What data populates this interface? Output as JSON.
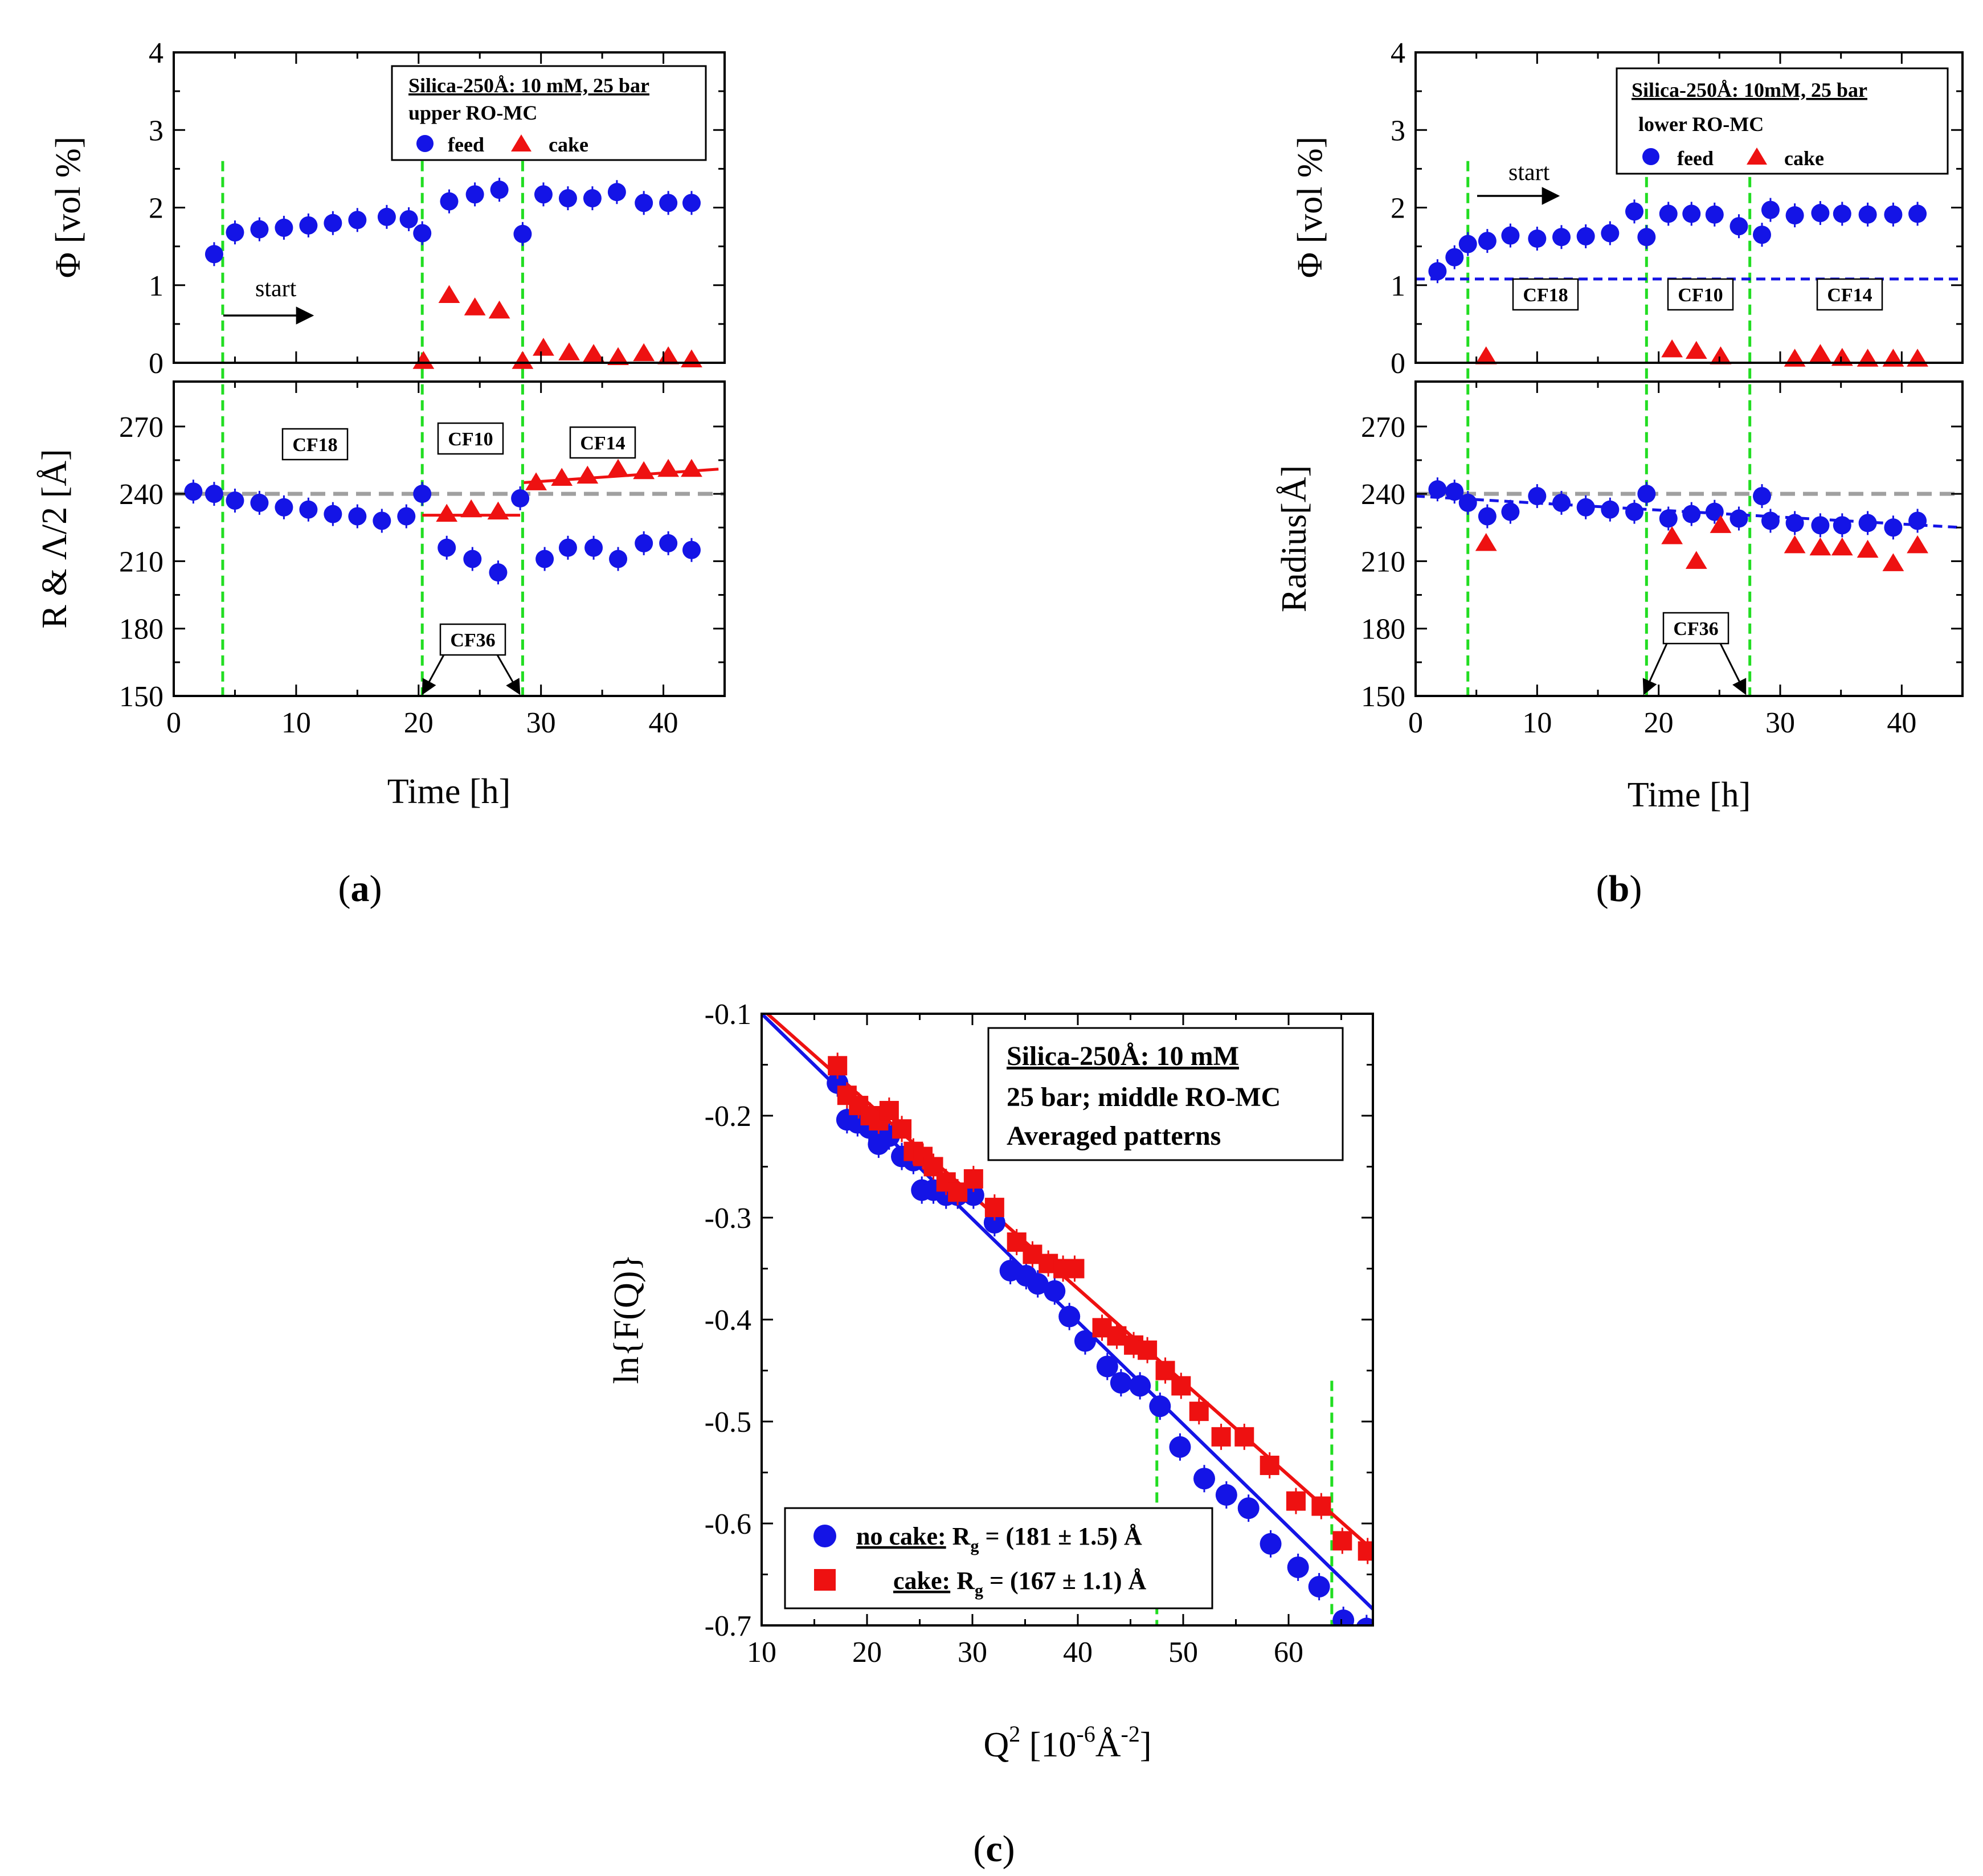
{
  "colors": {
    "feed": "#1414e6",
    "cake": "#ee1111",
    "green": "#22dd22",
    "grey": "#a0a0a0",
    "fit_blue": "#1414e6",
    "fit_red": "#ee1111"
  },
  "panels": {
    "a": {
      "label_open": "(",
      "label_letter": "a",
      "label_close": ")",
      "top": {
        "ylabel": "Φ [vol %]",
        "xlim": [
          0,
          45
        ],
        "ylim": [
          0,
          4
        ],
        "yticks": [
          "0",
          "1",
          "2",
          "3",
          "4"
        ],
        "yticks_values": [
          0,
          1,
          2,
          3,
          4
        ],
        "box_title": "Silica-250Å: 10 mM, 25 bar",
        "box_sub": "upper RO-MC",
        "legend_feed": "feed",
        "legend_cake": "cake",
        "start_label": "start",
        "feed": [
          [
            3.3,
            1.4
          ],
          [
            5,
            1.68
          ],
          [
            7,
            1.72
          ],
          [
            9,
            1.74
          ],
          [
            11,
            1.77
          ],
          [
            13,
            1.8
          ],
          [
            15,
            1.84
          ],
          [
            17.4,
            1.88
          ],
          [
            19.2,
            1.85
          ],
          [
            20.3,
            1.67
          ],
          [
            22.5,
            2.08
          ],
          [
            24.6,
            2.17
          ],
          [
            26.6,
            2.23
          ],
          [
            28.5,
            1.66
          ],
          [
            30.2,
            2.17
          ],
          [
            32.2,
            2.12
          ],
          [
            34.2,
            2.12
          ],
          [
            36.2,
            2.2
          ],
          [
            38.4,
            2.06
          ],
          [
            40.4,
            2.06
          ],
          [
            42.3,
            2.06
          ]
        ],
        "cake": [
          [
            20.4,
            0.02
          ],
          [
            22.5,
            0.87
          ],
          [
            24.6,
            0.71
          ],
          [
            26.6,
            0.67
          ],
          [
            28.5,
            0.02
          ],
          [
            30.2,
            0.19
          ],
          [
            32.3,
            0.13
          ],
          [
            34.3,
            0.11
          ],
          [
            36.3,
            0.07
          ],
          [
            38.4,
            0.12
          ],
          [
            40.4,
            0.08
          ],
          [
            42.3,
            0.04
          ]
        ]
      },
      "bottom": {
        "ylabel": "R & Λ/2 [Å]",
        "xlabel": "Time [h]",
        "xlim": [
          0,
          45
        ],
        "ylim": [
          150,
          290
        ],
        "xticks": [
          "0",
          "10",
          "20",
          "30",
          "40"
        ],
        "xticks_values": [
          0,
          10,
          20,
          30,
          40
        ],
        "yticks": [
          "150",
          "180",
          "210",
          "240",
          "270"
        ],
        "yticks_values": [
          150,
          180,
          210,
          240,
          270
        ],
        "feed": [
          [
            1.6,
            241
          ],
          [
            3.3,
            240
          ],
          [
            5,
            237
          ],
          [
            7,
            236
          ],
          [
            9,
            234
          ],
          [
            11,
            233
          ],
          [
            13,
            231
          ],
          [
            15,
            230
          ],
          [
            17,
            228
          ],
          [
            19,
            230
          ],
          [
            20.3,
            240
          ],
          [
            22.3,
            216
          ],
          [
            24.4,
            211
          ],
          [
            26.5,
            205
          ],
          [
            28.3,
            238
          ],
          [
            30.3,
            211
          ],
          [
            32.2,
            216
          ],
          [
            34.3,
            216
          ],
          [
            36.3,
            211
          ],
          [
            38.4,
            218
          ],
          [
            40.4,
            218
          ],
          [
            42.3,
            215
          ]
        ],
        "cake": [
          [
            22.3,
            231
          ],
          [
            24.3,
            233
          ],
          [
            26.5,
            232
          ],
          [
            29.6,
            245
          ],
          [
            31.7,
            247
          ],
          [
            33.8,
            248
          ],
          [
            36.3,
            251
          ],
          [
            38.4,
            250
          ],
          [
            40.4,
            251
          ],
          [
            42.3,
            251
          ]
        ],
        "boxes": [
          "CF18",
          "CF10",
          "CF14",
          "CF36"
        ]
      },
      "vlines_x": [
        4.0,
        20.3,
        28.5
      ]
    },
    "b": {
      "label_open": "(",
      "label_letter": "b",
      "label_close": ")",
      "top": {
        "ylabel": "Φ [vol %]",
        "xlim": [
          0,
          45
        ],
        "ylim": [
          0,
          4
        ],
        "yticks": [
          "0",
          "1",
          "2",
          "3",
          "4"
        ],
        "yticks_values": [
          0,
          1,
          2,
          3,
          4
        ],
        "box_title": "Silica-250Å: 10mM, 25 bar",
        "box_sub": "lower RO-MC",
        "legend_feed": "feed",
        "legend_cake": "cake",
        "start_label": "start",
        "feed": [
          [
            1.8,
            1.18
          ],
          [
            3.2,
            1.36
          ],
          [
            4.3,
            1.53
          ],
          [
            5.9,
            1.57
          ],
          [
            7.8,
            1.64
          ],
          [
            10,
            1.6
          ],
          [
            12,
            1.62
          ],
          [
            14,
            1.63
          ],
          [
            16,
            1.67
          ],
          [
            18,
            1.95
          ],
          [
            19,
            1.62
          ],
          [
            20.8,
            1.92
          ],
          [
            22.7,
            1.92
          ],
          [
            24.6,
            1.91
          ],
          [
            26.6,
            1.76
          ],
          [
            28.5,
            1.65
          ],
          [
            29.2,
            1.97
          ],
          [
            31.2,
            1.9
          ],
          [
            33.3,
            1.93
          ],
          [
            35.1,
            1.92
          ],
          [
            37.2,
            1.91
          ],
          [
            39.3,
            1.91
          ],
          [
            41.3,
            1.92
          ]
        ],
        "cake": [
          [
            5.8,
            0.08
          ],
          [
            21.1,
            0.17
          ],
          [
            23.1,
            0.15
          ],
          [
            25.1,
            0.08
          ],
          [
            31.2,
            0.05
          ],
          [
            33.3,
            0.11
          ],
          [
            35.1,
            0.06
          ],
          [
            37.2,
            0.05
          ],
          [
            39.3,
            0.05
          ],
          [
            41.3,
            0.05
          ]
        ],
        "hline_y": 1.08
      },
      "bottom": {
        "ylabel": "Radius[Å]",
        "xlabel": "Time [h]",
        "xlim": [
          0,
          45
        ],
        "ylim": [
          150,
          290
        ],
        "xticks": [
          "0",
          "10",
          "20",
          "30",
          "40"
        ],
        "xticks_values": [
          0,
          10,
          20,
          30,
          40
        ],
        "yticks": [
          "150",
          "180",
          "210",
          "240",
          "270"
        ],
        "yticks_values": [
          150,
          180,
          210,
          240,
          270
        ],
        "feed": [
          [
            1.8,
            242
          ],
          [
            3.2,
            241
          ],
          [
            4.3,
            236
          ],
          [
            5.9,
            230
          ],
          [
            7.8,
            232
          ],
          [
            10,
            239
          ],
          [
            12,
            236
          ],
          [
            14,
            234
          ],
          [
            16,
            233
          ],
          [
            18,
            232
          ],
          [
            19,
            240
          ],
          [
            20.8,
            229
          ],
          [
            22.7,
            231
          ],
          [
            24.6,
            232
          ],
          [
            26.6,
            229
          ],
          [
            28.5,
            239
          ],
          [
            29.2,
            228
          ],
          [
            31.2,
            227
          ],
          [
            33.3,
            226
          ],
          [
            35.1,
            226
          ],
          [
            37.2,
            227
          ],
          [
            39.3,
            225
          ],
          [
            41.3,
            228
          ]
        ],
        "cake": [
          [
            5.8,
            218
          ],
          [
            21.1,
            221
          ],
          [
            23.1,
            210
          ],
          [
            25.1,
            226
          ],
          [
            31.2,
            217
          ],
          [
            33.3,
            216
          ],
          [
            35.1,
            216
          ],
          [
            37.2,
            215
          ],
          [
            39.3,
            209
          ],
          [
            41.3,
            217
          ]
        ],
        "trend": [
          [
            0,
            239
          ],
          [
            45,
            225
          ]
        ],
        "boxes": [
          "CF18",
          "CF10",
          "CF14",
          "CF36"
        ]
      },
      "vlines_x": [
        4.3,
        19.0,
        27.5
      ]
    },
    "c": {
      "label_open": "(",
      "label_letter": "c",
      "label_close": ")",
      "xlabel_main": "Q",
      "xlabel_sup": "2",
      "xlabel_unit_open": " [10",
      "xlabel_exp1": "-6",
      "xlabel_unit_mid": "Å",
      "xlabel_exp2": "-2",
      "xlabel_unit_close": "]",
      "ylabel": "ln{F(Q)}",
      "xlim": [
        10,
        68
      ],
      "ylim": [
        -0.7,
        -0.1
      ],
      "xticks": [
        "10",
        "20",
        "30",
        "40",
        "50",
        "60"
      ],
      "xticks_values": [
        10,
        20,
        30,
        40,
        50,
        60
      ],
      "yticks": [
        "-0.1",
        "-0.2",
        "-0.3",
        "-0.4",
        "-0.5",
        "-0.6",
        "-0.7"
      ],
      "yticks_values": [
        -0.1,
        -0.2,
        -0.3,
        -0.4,
        -0.5,
        -0.6,
        -0.7
      ],
      "box_lines": [
        "Silica-250Å: 10 mM",
        "25 bar; middle RO-MC",
        "Averaged patterns"
      ],
      "legend_nocake_label": "no cake:",
      "legend_nocake_val": "R",
      "legend_nocake_sub": "g",
      "legend_nocake_rest": " = (181 ± 1.5) Å",
      "legend_cake_label": "cake:",
      "legend_cake_val": "R",
      "legend_cake_sub": "g",
      "legend_cake_rest": " = (167 ± 1.1) Å",
      "vlines_x": [
        47.5,
        64.1
      ],
      "nocake": [
        [
          17.2,
          -0.168
        ],
        [
          18.1,
          -0.204
        ],
        [
          19.1,
          -0.207
        ],
        [
          20.2,
          -0.212
        ],
        [
          21.1,
          -0.228
        ],
        [
          22.1,
          -0.22
        ],
        [
          23.3,
          -0.24
        ],
        [
          24.4,
          -0.244
        ],
        [
          25.2,
          -0.273
        ],
        [
          26.3,
          -0.273
        ],
        [
          27.5,
          -0.278
        ],
        [
          28.6,
          -0.278
        ],
        [
          30.1,
          -0.278
        ],
        [
          32.1,
          -0.305
        ],
        [
          33.6,
          -0.352
        ],
        [
          35.1,
          -0.357
        ],
        [
          36.2,
          -0.365
        ],
        [
          37.8,
          -0.372
        ],
        [
          39.2,
          -0.397
        ],
        [
          40.7,
          -0.421
        ],
        [
          42.8,
          -0.446
        ],
        [
          44.1,
          -0.462
        ],
        [
          45.9,
          -0.465
        ],
        [
          47.8,
          -0.485
        ],
        [
          49.7,
          -0.525
        ],
        [
          52.0,
          -0.556
        ],
        [
          54.1,
          -0.572
        ],
        [
          56.2,
          -0.585
        ],
        [
          58.3,
          -0.62
        ],
        [
          60.9,
          -0.643
        ],
        [
          62.9,
          -0.662
        ],
        [
          65.2,
          -0.695
        ],
        [
          67.4,
          -0.703
        ]
      ],
      "cake": [
        [
          17.2,
          -0.151
        ],
        [
          18.1,
          -0.18
        ],
        [
          19.2,
          -0.19
        ],
        [
          20.3,
          -0.2
        ],
        [
          21.1,
          -0.205
        ],
        [
          22.1,
          -0.195
        ],
        [
          23.3,
          -0.213
        ],
        [
          24.4,
          -0.235
        ],
        [
          25.3,
          -0.24
        ],
        [
          26.3,
          -0.25
        ],
        [
          27.5,
          -0.265
        ],
        [
          28.6,
          -0.275
        ],
        [
          30.1,
          -0.262
        ],
        [
          32.1,
          -0.29
        ],
        [
          34.2,
          -0.324
        ],
        [
          35.7,
          -0.336
        ],
        [
          37.2,
          -0.345
        ],
        [
          38.6,
          -0.35
        ],
        [
          39.7,
          -0.35
        ],
        [
          42.3,
          -0.408
        ],
        [
          43.7,
          -0.416
        ],
        [
          45.3,
          -0.425
        ],
        [
          46.6,
          -0.43
        ],
        [
          48.3,
          -0.45
        ],
        [
          49.8,
          -0.465
        ],
        [
          51.5,
          -0.49
        ],
        [
          53.6,
          -0.515
        ],
        [
          55.8,
          -0.515
        ],
        [
          58.2,
          -0.543
        ],
        [
          60.7,
          -0.578
        ],
        [
          63.1,
          -0.583
        ],
        [
          65.1,
          -0.617
        ],
        [
          67.5,
          -0.627
        ]
      ],
      "fit_nocake": [
        [
          10,
          -0.1
        ],
        [
          68,
          -0.684
        ]
      ],
      "fit_cake": [
        [
          10,
          -0.095
        ],
        [
          68,
          -0.626
        ]
      ]
    }
  }
}
